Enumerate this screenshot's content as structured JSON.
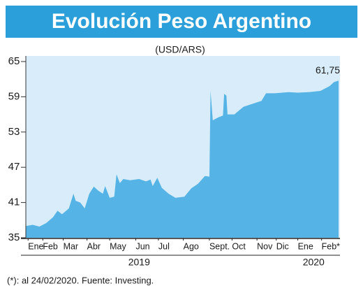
{
  "chart_data": {
    "type": "area",
    "title": "Evolución Peso Argentino",
    "subtitle": "(USD/ARS)",
    "footnote": "(*): al 24/02/2020. Fuente: Investing.",
    "x": [
      0,
      0.3,
      0.6,
      0.9,
      1.2,
      1.4,
      1.6,
      1.9,
      2.1,
      2.2,
      2.4,
      2.6,
      2.8,
      3.0,
      3.2,
      3.4,
      3.5,
      3.7,
      3.9,
      4.0,
      4.15,
      4.3,
      4.6,
      5.0,
      5.3,
      5.5,
      5.6,
      5.8,
      6.0,
      6.3,
      6.6,
      7.0,
      7.3,
      7.6,
      7.9,
      8.1,
      8.15,
      8.25,
      8.5,
      8.7,
      8.75,
      8.85,
      8.9,
      9.2,
      9.6,
      10.0,
      10.4,
      10.6,
      11.0,
      11.6,
      12.0,
      12.5,
      13.0,
      13.4,
      13.6,
      13.8
    ],
    "values": [
      37.0,
      37.2,
      36.9,
      37.5,
      38.5,
      39.6,
      39.0,
      40.0,
      42.5,
      41.3,
      41.0,
      40.0,
      42.5,
      43.7,
      43.0,
      42.5,
      43.8,
      41.8,
      42.0,
      45.8,
      44.3,
      45.0,
      44.8,
      45.0,
      44.6,
      44.9,
      43.8,
      45.2,
      43.5,
      42.5,
      41.8,
      42.0,
      43.4,
      44.2,
      45.5,
      45.4,
      60.0,
      55.0,
      55.5,
      55.8,
      59.5,
      59.2,
      56.0,
      56.0,
      57.3,
      57.8,
      58.3,
      59.6,
      59.6,
      59.8,
      59.7,
      59.8,
      60.0,
      60.8,
      61.5,
      61.75
    ],
    "color": "#55b3e6",
    "background": "#d8edf9",
    "end_label": {
      "value": 61.75,
      "label": "61,75"
    },
    "xlim": [
      0,
      13.8
    ],
    "ylim": [
      35,
      65
    ],
    "yticks": [
      35,
      41,
      47,
      53,
      59,
      65
    ],
    "xticks": [
      {
        "value": 0.1,
        "label": "Ene"
      },
      {
        "value": 0.75,
        "label": "Feb"
      },
      {
        "value": 1.65,
        "label": "Mar"
      },
      {
        "value": 2.7,
        "label": "Abr"
      },
      {
        "value": 3.7,
        "label": "May"
      },
      {
        "value": 4.85,
        "label": "Jun"
      },
      {
        "value": 5.85,
        "label": "Jul"
      },
      {
        "value": 6.95,
        "label": "Ago"
      },
      {
        "value": 8.1,
        "label": "Sept."
      },
      {
        "value": 9.1,
        "label": "Oct"
      },
      {
        "value": 10.2,
        "label": "Nov"
      },
      {
        "value": 11.05,
        "label": "Dic"
      },
      {
        "value": 12.0,
        "label": "Ene"
      },
      {
        "value": 13.05,
        "label": "Feb*"
      }
    ],
    "year_labels": [
      {
        "value": 5.0,
        "label": "2019"
      },
      {
        "value": 12.7,
        "label": "2020"
      }
    ],
    "grid": false
  }
}
